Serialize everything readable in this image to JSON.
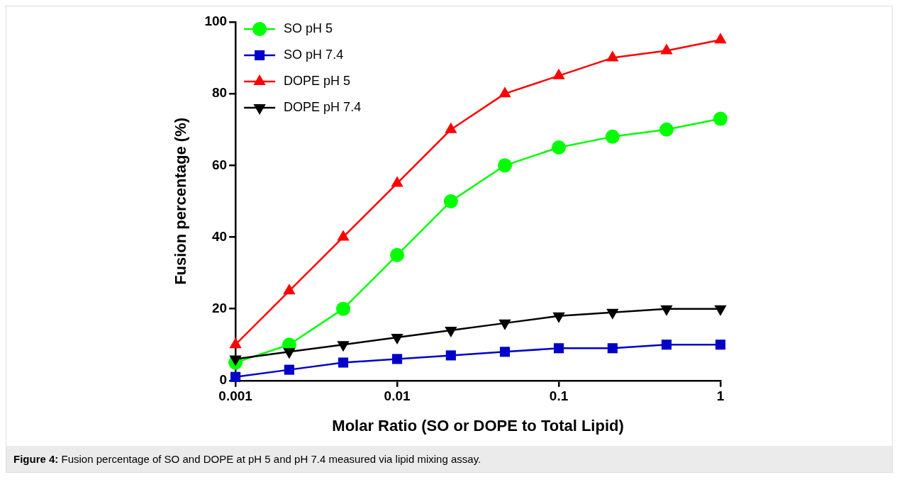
{
  "chart_data": {
    "type": "line",
    "xlabel": "Molar Ratio (SO or DOPE to Total Lipid)",
    "ylabel": "Fusion percentage (%)",
    "x": [
      0.001,
      0.00215,
      0.00464,
      0.01,
      0.0215,
      0.0464,
      0.1,
      0.215,
      0.464,
      1
    ],
    "series": [
      {
        "name": "SO pH 5",
        "color": "#00ff00",
        "marker": "circle",
        "values": [
          5,
          10,
          20,
          35,
          50,
          60,
          65,
          68,
          70,
          73
        ]
      },
      {
        "name": "SO pH 7.4",
        "color": "#0000c8",
        "marker": "square",
        "values": [
          1,
          3,
          5,
          6,
          7,
          8,
          9,
          9,
          10,
          10
        ]
      },
      {
        "name": "DOPE pH 5",
        "color": "#ff0000",
        "marker": "triangle",
        "values": [
          10,
          25,
          40,
          55,
          70,
          80,
          85,
          90,
          92,
          95
        ]
      },
      {
        "name": "DOPE pH 7.4",
        "color": "#000000",
        "marker": "triangle-down",
        "values": [
          6,
          8,
          10,
          12,
          14,
          16,
          18,
          19,
          20,
          20
        ]
      }
    ],
    "log": "x",
    "xlim": [
      0.001,
      1
    ],
    "xticks": [
      0.001,
      0.01,
      0.1,
      1
    ],
    "ylim": [
      0,
      100
    ],
    "yticks": [
      0,
      20,
      40,
      60,
      80,
      100
    ],
    "grid": false,
    "legend": "top left",
    "line_style": "solid",
    "annotations": [
      "Figure 4: Fusion percentage of SO and DOPE at pH 5 and pH 7.4 measured via lipid mixing assay."
    ]
  }
}
